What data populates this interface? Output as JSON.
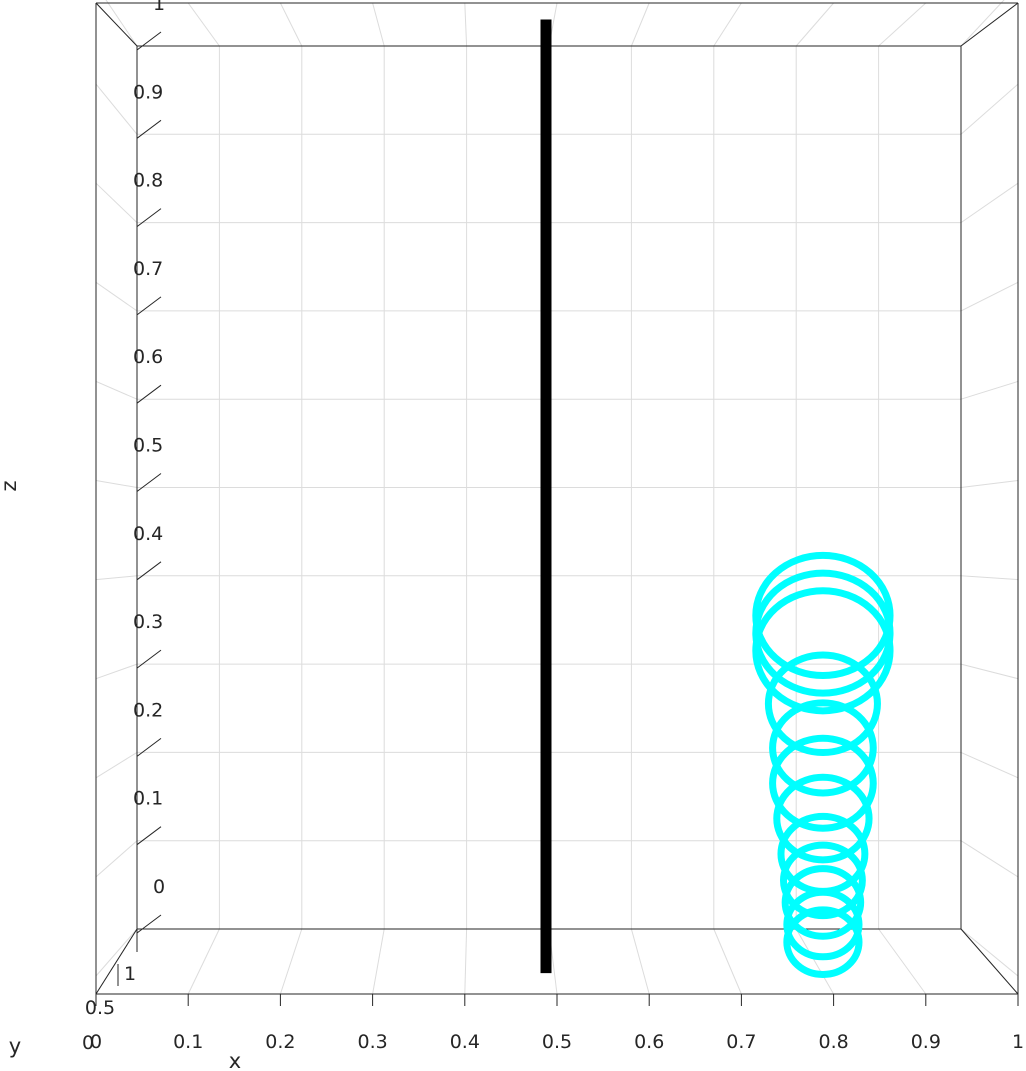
{
  "chart_data": {
    "type": "scatter",
    "projection": "3d",
    "title": "",
    "xlabel": "x",
    "ylabel": "y",
    "zlabel": "z",
    "xlim": [
      0,
      1
    ],
    "ylim": [
      0,
      1
    ],
    "zlim": [
      0,
      1
    ],
    "grid": true,
    "x_ticks": [
      "0",
      "0.1",
      "0.2",
      "0.3",
      "0.4",
      "0.5",
      "0.6",
      "0.7",
      "0.8",
      "0.9",
      "1"
    ],
    "y_ticks": [
      "0",
      "0.5",
      "1"
    ],
    "z_ticks": [
      "0",
      "0.1",
      "0.2",
      "0.3",
      "0.4",
      "0.5",
      "0.6",
      "0.7",
      "0.8",
      "0.9",
      "1"
    ],
    "colors": {
      "rod": "#000000",
      "rings": "#00ffff",
      "grid": "#dcdcdc",
      "box": "#262626"
    },
    "series": [
      {
        "type": "line",
        "x": [
          0.5,
          0.5
        ],
        "z": [
          -0.05,
          1.03
        ]
      },
      {
        "type": "rings",
        "rings": [
          {
            "x": 0.83,
            "z": 0.38,
            "r": 0.08
          },
          {
            "x": 0.83,
            "z": 0.36,
            "r": 0.08
          },
          {
            "x": 0.83,
            "z": 0.34,
            "r": 0.08
          },
          {
            "x": 0.83,
            "z": 0.28,
            "r": 0.065
          },
          {
            "x": 0.83,
            "z": 0.23,
            "r": 0.06
          },
          {
            "x": 0.83,
            "z": 0.19,
            "r": 0.06
          },
          {
            "x": 0.83,
            "z": 0.15,
            "r": 0.055
          },
          {
            "x": 0.83,
            "z": 0.11,
            "r": 0.05
          },
          {
            "x": 0.83,
            "z": 0.08,
            "r": 0.047
          },
          {
            "x": 0.83,
            "z": 0.055,
            "r": 0.045
          },
          {
            "x": 0.83,
            "z": 0.03,
            "r": 0.043
          },
          {
            "x": 0.83,
            "z": 0.01,
            "r": 0.043
          }
        ]
      }
    ]
  }
}
